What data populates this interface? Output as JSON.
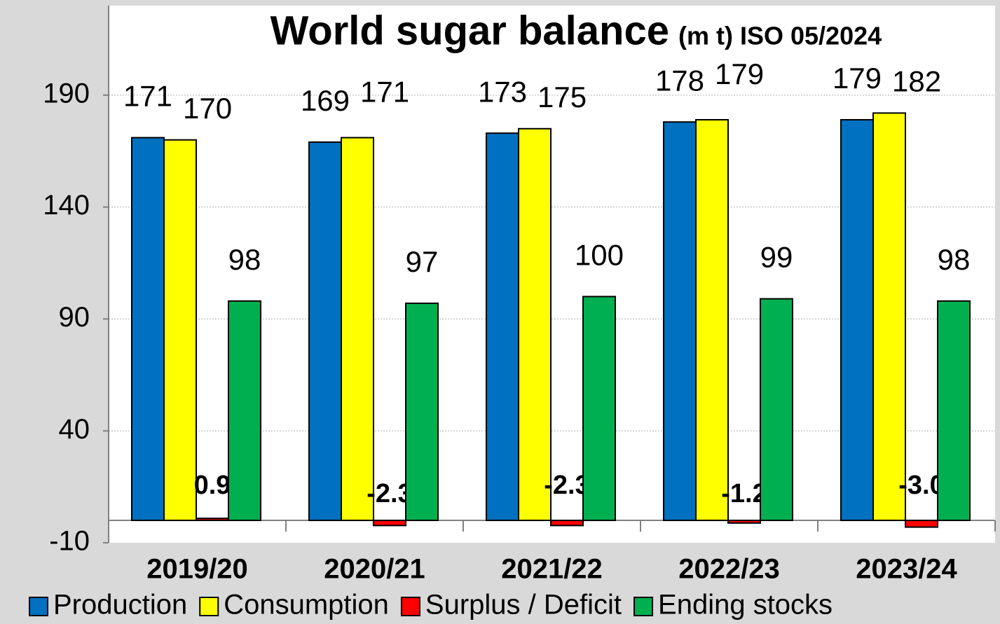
{
  "chart_data": {
    "type": "bar",
    "title": "World sugar balance",
    "subtitle": "(m t) ISO 05/2024",
    "categories": [
      "2019/20",
      "2020/21",
      "2021/22",
      "2022/23",
      "2023/24"
    ],
    "series": [
      {
        "name": "Production",
        "color": "#0070c0",
        "values": [
          171,
          169,
          173,
          178,
          179
        ]
      },
      {
        "name": "Consumption",
        "color": "#ffff00",
        "values": [
          170,
          171,
          175,
          179,
          182
        ]
      },
      {
        "name": "Surplus / Deficit",
        "color": "#ff0000",
        "values": [
          0.9,
          -2.3,
          -2.3,
          -1.2,
          -3
        ],
        "value_labels": [
          "0.9",
          "-2.3",
          "-2.3",
          "-1.2",
          "-3.0"
        ]
      },
      {
        "name": "Ending stocks",
        "color": "#00b050",
        "values": [
          98,
          97,
          100,
          99,
          98
        ]
      }
    ],
    "ylim": [
      -10,
      230
    ],
    "yticks": [
      -10,
      40,
      90,
      140,
      190
    ],
    "grid": true,
    "legend": "bottom"
  }
}
